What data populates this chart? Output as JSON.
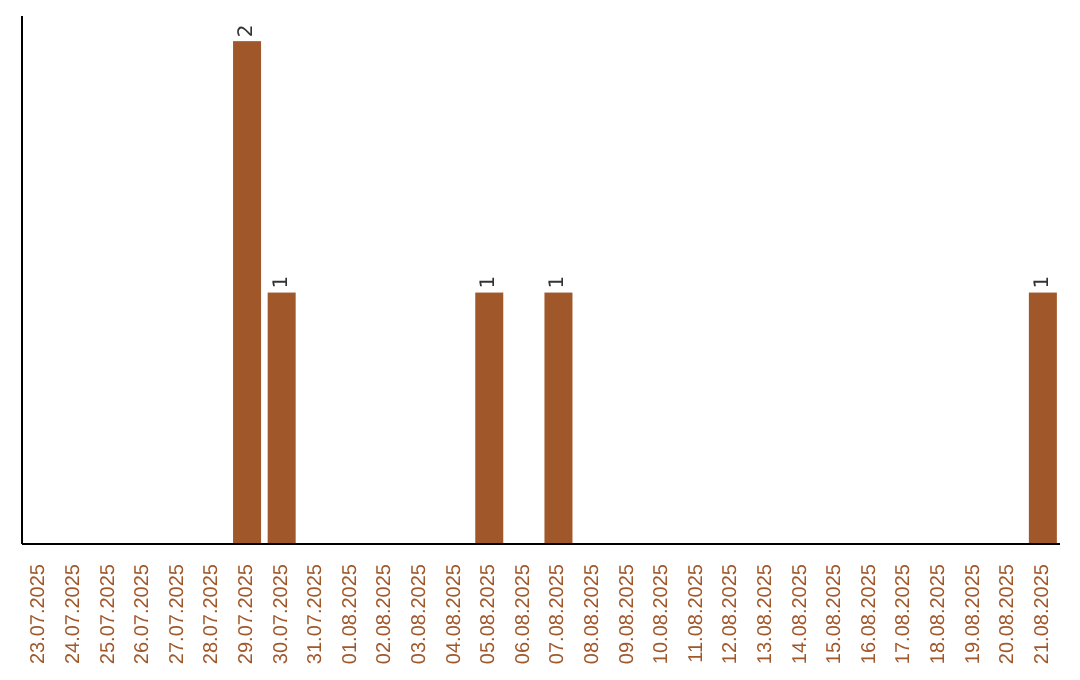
{
  "chart_data": {
    "type": "bar",
    "categories": [
      "23.07.2025",
      "24.07.2025",
      "25.07.2025",
      "26.07.2025",
      "27.07.2025",
      "28.07.2025",
      "29.07.2025",
      "30.07.2025",
      "31.07.2025",
      "01.08.2025",
      "02.08.2025",
      "03.08.2025",
      "04.08.2025",
      "05.08.2025",
      "06.08.2025",
      "07.08.2025",
      "08.08.2025",
      "09.08.2025",
      "10.08.2025",
      "11.08.2025",
      "12.08.2025",
      "13.08.2025",
      "14.08.2025",
      "15.08.2025",
      "16.08.2025",
      "17.08.2025",
      "18.08.2025",
      "19.08.2025",
      "20.08.2025",
      "21.08.2025"
    ],
    "values": [
      0,
      0,
      0,
      0,
      0,
      0,
      2,
      1,
      0,
      0,
      0,
      0,
      0,
      1,
      0,
      1,
      0,
      0,
      0,
      0,
      0,
      0,
      0,
      0,
      0,
      0,
      0,
      0,
      0,
      1
    ],
    "value_labels": [
      null,
      null,
      null,
      null,
      null,
      null,
      "2",
      "1",
      null,
      null,
      null,
      null,
      null,
      "1",
      null,
      "1",
      null,
      null,
      null,
      null,
      null,
      null,
      null,
      null,
      null,
      null,
      null,
      null,
      null,
      "1"
    ],
    "color": "#a0572a",
    "grid": false,
    "legend": false
  }
}
